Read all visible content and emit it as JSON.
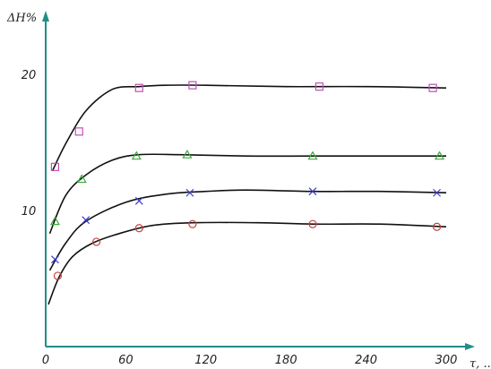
{
  "chart_data": {
    "type": "line",
    "title": "",
    "ylabel": "ΔH%",
    "xlabel": "τ, ...",
    "xlim": [
      0,
      310
    ],
    "ylim": [
      0,
      25
    ],
    "x_ticks": [
      0,
      60,
      120,
      180,
      240,
      300
    ],
    "y_ticks": [
      10,
      20
    ],
    "grid": false,
    "legend": "none",
    "series": [
      {
        "marker": "square",
        "color": "#c050b8",
        "curve": [
          [
            5,
            12.9
          ],
          [
            15,
            14.9
          ],
          [
            30,
            17.3
          ],
          [
            50,
            18.9
          ],
          [
            70,
            19.1
          ],
          [
            90,
            19.2
          ],
          [
            120,
            19.2
          ],
          [
            180,
            19.1
          ],
          [
            240,
            19.1
          ],
          [
            300,
            19.0
          ]
        ],
        "points": [
          [
            7,
            13.2
          ],
          [
            25,
            15.8
          ],
          [
            70,
            19.0
          ],
          [
            110,
            19.2
          ],
          [
            205,
            19.1
          ],
          [
            290,
            19.0
          ]
        ]
      },
      {
        "marker": "triangle",
        "color": "#3caa3c",
        "curve": [
          [
            3,
            8.3
          ],
          [
            15,
            11.1
          ],
          [
            30,
            12.6
          ],
          [
            50,
            13.7
          ],
          [
            70,
            14.1
          ],
          [
            100,
            14.1
          ],
          [
            150,
            14.0
          ],
          [
            200,
            14.0
          ],
          [
            250,
            14.0
          ],
          [
            300,
            14.0
          ]
        ],
        "points": [
          [
            7,
            9.2
          ],
          [
            27,
            12.3
          ],
          [
            68,
            14.0
          ],
          [
            106,
            14.1
          ],
          [
            200,
            14.0
          ],
          [
            295,
            14.0
          ]
        ]
      },
      {
        "marker": "x",
        "color": "#3b3bc8",
        "curve": [
          [
            3,
            5.6
          ],
          [
            15,
            7.6
          ],
          [
            30,
            9.2
          ],
          [
            60,
            10.6
          ],
          [
            90,
            11.2
          ],
          [
            120,
            11.4
          ],
          [
            150,
            11.5
          ],
          [
            200,
            11.4
          ],
          [
            250,
            11.4
          ],
          [
            300,
            11.3
          ]
        ],
        "points": [
          [
            7,
            6.4
          ],
          [
            30,
            9.3
          ],
          [
            70,
            10.7
          ],
          [
            108,
            11.3
          ],
          [
            200,
            11.4
          ],
          [
            293,
            11.3
          ]
        ]
      },
      {
        "marker": "circle",
        "color": "#c84040",
        "curve": [
          [
            2,
            3.1
          ],
          [
            10,
            5.1
          ],
          [
            20,
            6.6
          ],
          [
            35,
            7.6
          ],
          [
            55,
            8.3
          ],
          [
            80,
            8.9
          ],
          [
            110,
            9.1
          ],
          [
            160,
            9.1
          ],
          [
            200,
            9.0
          ],
          [
            250,
            9.0
          ],
          [
            300,
            8.8
          ]
        ],
        "points": [
          [
            9,
            5.2
          ],
          [
            38,
            7.7
          ],
          [
            70,
            8.7
          ],
          [
            110,
            9.0
          ],
          [
            200,
            9.0
          ],
          [
            293,
            8.8
          ]
        ]
      }
    ]
  }
}
